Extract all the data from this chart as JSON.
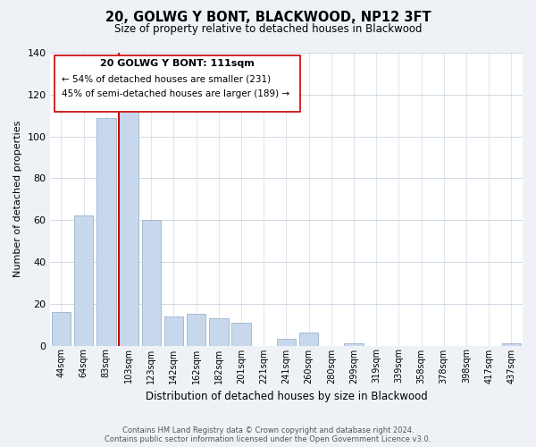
{
  "title": "20, GOLWG Y BONT, BLACKWOOD, NP12 3FT",
  "subtitle": "Size of property relative to detached houses in Blackwood",
  "xlabel": "Distribution of detached houses by size in Blackwood",
  "ylabel": "Number of detached properties",
  "bar_labels": [
    "44sqm",
    "64sqm",
    "83sqm",
    "103sqm",
    "123sqm",
    "142sqm",
    "162sqm",
    "182sqm",
    "201sqm",
    "221sqm",
    "241sqm",
    "260sqm",
    "280sqm",
    "299sqm",
    "319sqm",
    "339sqm",
    "358sqm",
    "378sqm",
    "398sqm",
    "417sqm",
    "437sqm"
  ],
  "bar_values": [
    16,
    62,
    109,
    117,
    60,
    14,
    15,
    13,
    11,
    0,
    3,
    6,
    0,
    1,
    0,
    0,
    0,
    0,
    0,
    0,
    1
  ],
  "bar_color": "#c8d8ec",
  "bar_edge_color": "#9ab4cc",
  "highlight_bar_index": 3,
  "highlight_color": "#cc0000",
  "ylim": [
    0,
    140
  ],
  "yticks": [
    0,
    20,
    40,
    60,
    80,
    100,
    120,
    140
  ],
  "annotation_title": "20 GOLWG Y BONT: 111sqm",
  "annotation_line1": "← 54% of detached houses are smaller (231)",
  "annotation_line2": "45% of semi-detached houses are larger (189) →",
  "footer_line1": "Contains HM Land Registry data © Crown copyright and database right 2024.",
  "footer_line2": "Contains public sector information licensed under the Open Government Licence v3.0.",
  "background_color": "#eef2f7",
  "plot_bg_color": "#ffffff",
  "grid_color": "#c8d4e0"
}
